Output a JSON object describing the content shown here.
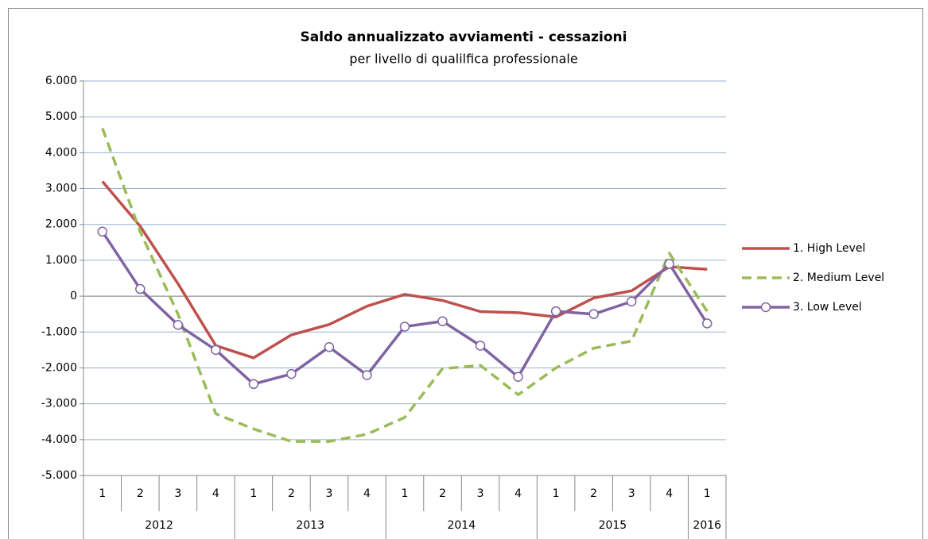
{
  "chart_data": {
    "type": "line",
    "title": "Saldo annualizzato  avviamenti - cessazioni",
    "subtitle": "per livello di qualilfica professionale",
    "groups": [
      {
        "label": "2012",
        "categories": [
          "1",
          "2",
          "3",
          "4"
        ]
      },
      {
        "label": "2013",
        "categories": [
          "1",
          "2",
          "3",
          "4"
        ]
      },
      {
        "label": "2014",
        "categories": [
          "1",
          "2",
          "3",
          "4"
        ]
      },
      {
        "label": "2015",
        "categories": [
          "1",
          "2",
          "3",
          "4"
        ]
      },
      {
        "label": "2016",
        "categories": [
          "1"
        ]
      }
    ],
    "series": [
      {
        "name": "1. High Level",
        "color": "#c0504d",
        "style": "solid",
        "marker": false,
        "values": [
          3200,
          1950,
          350,
          -1380,
          -1720,
          -1080,
          -790,
          -280,
          50,
          -120,
          -430,
          -460,
          -580,
          -50,
          150,
          820,
          750
        ]
      },
      {
        "name": "2. Medium Level",
        "color": "#9bbb59",
        "style": "dashed",
        "marker": false,
        "values": [
          4680,
          1800,
          -500,
          -3280,
          -3700,
          -4050,
          -4050,
          -3850,
          -3380,
          -2020,
          -1930,
          -2750,
          -2000,
          -1450,
          -1250,
          1200,
          -420
        ]
      },
      {
        "name": "3. Low Level",
        "color": "#8064a2",
        "style": "solid",
        "marker": true,
        "values": [
          1800,
          200,
          -800,
          -1500,
          -2450,
          -2170,
          -1420,
          -2200,
          -850,
          -700,
          -1380,
          -2250,
          -420,
          -500,
          -150,
          900,
          -760
        ]
      }
    ],
    "ylim": [
      -5000,
      6000
    ],
    "yticks": [
      {
        "value": -5000,
        "label": "-5.000"
      },
      {
        "value": -4000,
        "label": "-4.000"
      },
      {
        "value": -3000,
        "label": "-3.000"
      },
      {
        "value": -2000,
        "label": "-2.000"
      },
      {
        "value": -1000,
        "label": "-1.000"
      },
      0,
      {
        "value": 1000,
        "label": "1.000"
      },
      {
        "value": 2000,
        "label": "2.000"
      },
      {
        "value": 3000,
        "label": "3.000"
      },
      {
        "value": 4000,
        "label": "4.000"
      },
      {
        "value": 5000,
        "label": "5.000"
      },
      {
        "value": 6000,
        "label": "6.000"
      }
    ],
    "grid": true,
    "legend": "right"
  }
}
